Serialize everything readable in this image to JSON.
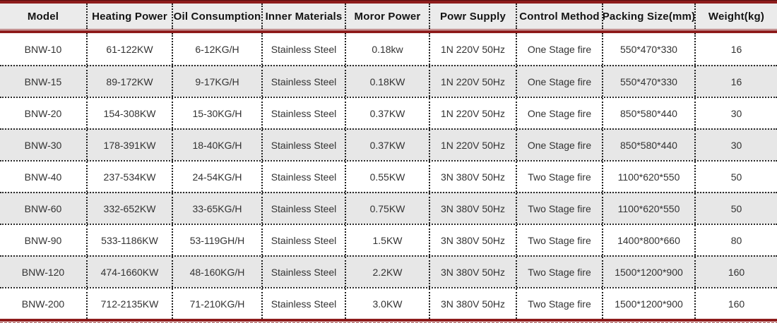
{
  "colors": {
    "accent_red": "#8e1c1c",
    "header_background": "#ebebeb",
    "alt_row_background": "#e7e7e7",
    "dotted_border": "#1f1f1f",
    "body_text": "#333333"
  },
  "chart_data": {
    "type": "table",
    "columns": [
      "Model",
      "Heating Power",
      "Oil Consumption",
      "Inner Materials",
      "Moror Power",
      "Powr Supply",
      "Control Method",
      "Packing Size(mm)",
      "Weight(kg)"
    ],
    "rows": [
      [
        "BNW-10",
        "61-122KW",
        "6-12KG/H",
        "Stainless Steel",
        "0.18kw",
        "1N 220V 50Hz",
        "One Stage fire",
        "550*470*330",
        "16"
      ],
      [
        "BNW-15",
        "89-172KW",
        "9-17KG/H",
        "Stainless Steel",
        "0.18KW",
        "1N 220V 50Hz",
        "One Stage fire",
        "550*470*330",
        "16"
      ],
      [
        "BNW-20",
        "154-308KW",
        "15-30KG/H",
        "Stainless Steel",
        "0.37KW",
        "1N 220V 50Hz",
        "One Stage fire",
        "850*580*440",
        "30"
      ],
      [
        "BNW-30",
        "178-391KW",
        "18-40KG/H",
        "Stainless Steel",
        "0.37KW",
        "1N 220V 50Hz",
        "One Stage fire",
        "850*580*440",
        "30"
      ],
      [
        "BNW-40",
        "237-534KW",
        "24-54KG/H",
        "Stainless Steel",
        "0.55KW",
        "3N 380V 50Hz",
        "Two Stage fire",
        "1100*620*550",
        "50"
      ],
      [
        "BNW-60",
        "332-652KW",
        "33-65KG/H",
        "Stainless Steel",
        "0.75KW",
        "3N 380V 50Hz",
        "Two Stage fire",
        "1100*620*550",
        "50"
      ],
      [
        "BNW-90",
        "533-1186KW",
        "53-119GH/H",
        "Stainless Steel",
        "1.5KW",
        "3N 380V 50Hz",
        "Two Stage fire",
        "1400*800*660",
        "80"
      ],
      [
        "BNW-120",
        "474-1660KW",
        "48-160KG/H",
        "Stainless Steel",
        "2.2KW",
        "3N 380V 50Hz",
        "Two Stage fire",
        "1500*1200*900",
        "160"
      ],
      [
        "BNW-200",
        "712-2135KW",
        "71-210KG/H",
        "Stainless Steel",
        "3.0KW",
        "3N 380V 50Hz",
        "Two Stage fire",
        "1500*1200*900",
        "160"
      ]
    ]
  }
}
